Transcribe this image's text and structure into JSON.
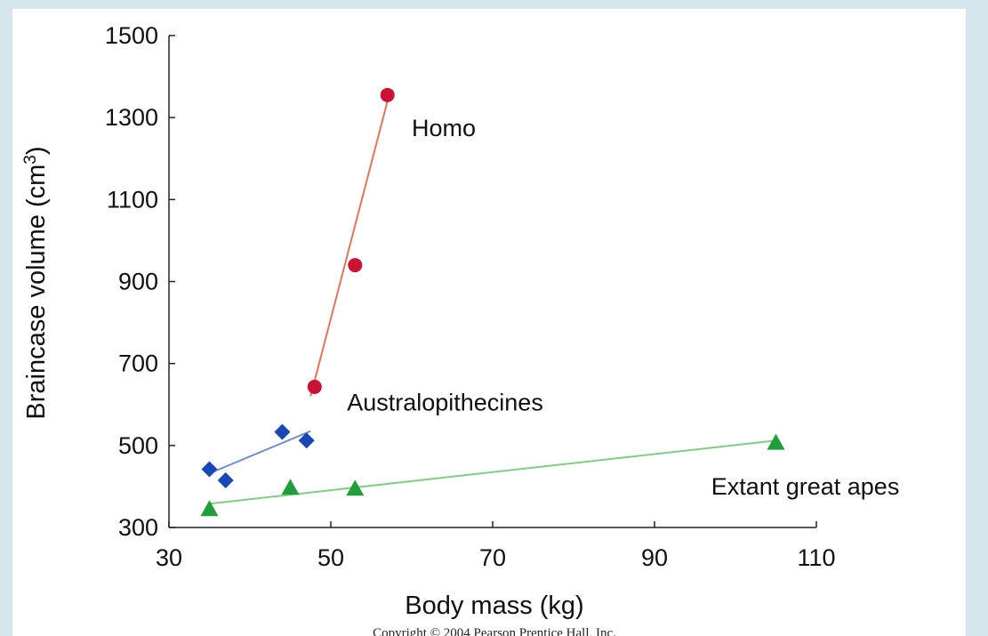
{
  "chart_data": {
    "type": "scatter",
    "title": "",
    "xlabel": "Body mass (kg)",
    "ylabel_main": "Braincase volume (cm",
    "ylabel_sup": "3",
    "ylabel_end": ")",
    "xlim": [
      30,
      110
    ],
    "ylim": [
      300,
      1500
    ],
    "xticks": [
      30,
      50,
      70,
      90,
      110
    ],
    "yticks": [
      300,
      500,
      700,
      900,
      1100,
      1300,
      1500
    ],
    "grid": false,
    "series": [
      {
        "name": "Homo",
        "marker": "circle",
        "color": "#cc1133",
        "line_color": "#e8735a",
        "x": [
          48,
          53,
          57
        ],
        "y": [
          643,
          940,
          1355
        ],
        "fit": [
          [
            47.5,
            620
          ],
          [
            57,
            1340
          ]
        ],
        "label_anchor": [
          60,
          1255
        ]
      },
      {
        "name": "Australopithecines",
        "marker": "diamond",
        "color": "#1a47b8",
        "line_color": "#6f8fd6",
        "x": [
          35,
          37,
          44,
          47
        ],
        "y": [
          442,
          415,
          533,
          512
        ],
        "fit": [
          [
            35,
            432
          ],
          [
            47.5,
            535
          ]
        ],
        "label_anchor": [
          52,
          585
        ]
      },
      {
        "name": "Extant great apes",
        "marker": "triangle",
        "color": "#1f9e3a",
        "line_color": "#7cd07e",
        "x": [
          35,
          45,
          53,
          105
        ],
        "y": [
          345,
          397,
          395,
          507
        ],
        "fit": [
          [
            35,
            358
          ],
          [
            105,
            512
          ]
        ],
        "label_anchor": [
          97,
          380
        ]
      }
    ]
  },
  "footer": {
    "copyright": "Copyright © 2004 Pearson Prentice Hall, Inc."
  }
}
